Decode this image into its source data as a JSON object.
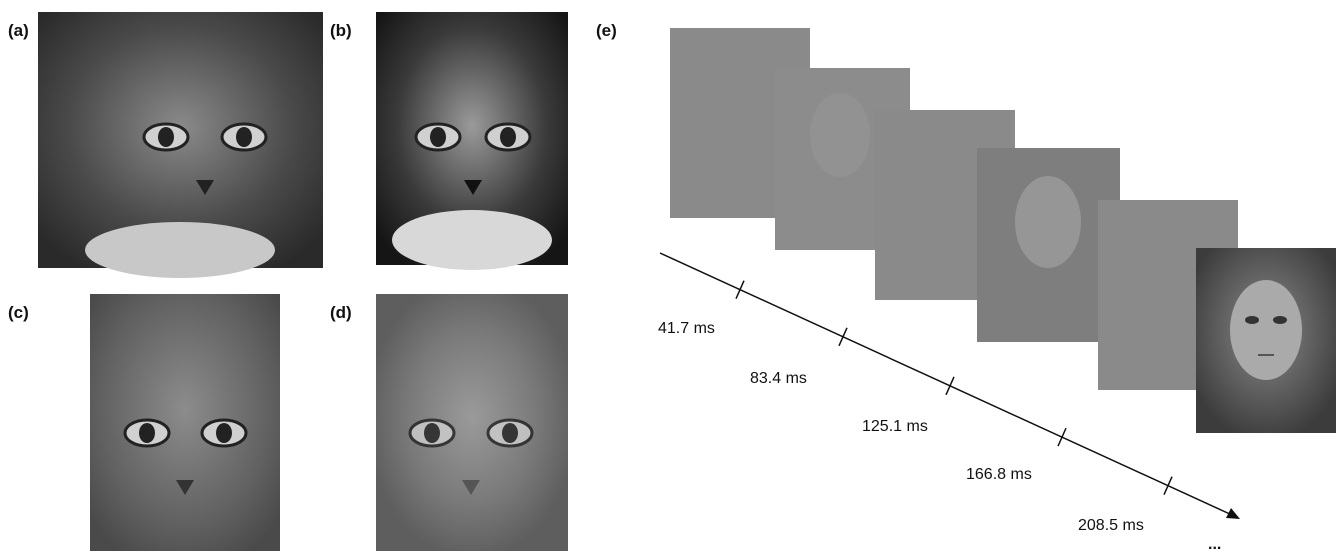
{
  "panels": [
    {
      "label": "(a)"
    },
    {
      "label": "(b)"
    },
    {
      "label": "(c)"
    },
    {
      "label": "(d)"
    },
    {
      "label": "(e)"
    }
  ],
  "timeline": {
    "times": [
      "41.7 ms",
      "83.4 ms",
      "125.1 ms",
      "166.8 ms",
      "208.5 ms"
    ],
    "continuation": "..."
  }
}
